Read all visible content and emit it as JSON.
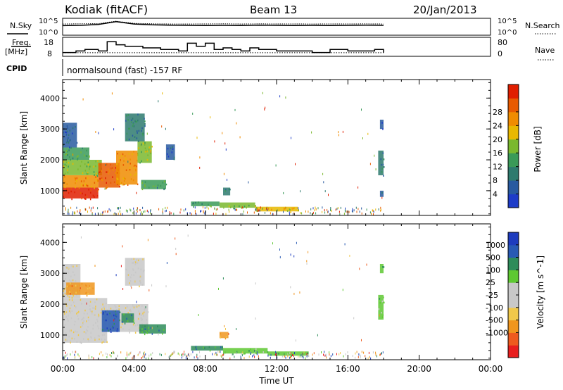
{
  "header": {
    "station": "Kodiak (fitACF)",
    "beam": "Beam 13",
    "date": "20/Jan/2013"
  },
  "side_labels": {
    "nsky": "N.Sky",
    "freq_line1": "Freq.",
    "freq_line2": "[MHz]",
    "cpid": "CPID",
    "nsearch": "N.Search",
    "nave": "Nave",
    "mode": "normalsound (fast) -157 RF"
  },
  "noise_axis": {
    "left_ticks": [
      "10^5",
      "10^0"
    ],
    "right_ticks": [
      "10^5",
      "10^0"
    ]
  },
  "freq_axis": {
    "left_ticks": [
      "18",
      "8"
    ],
    "right_ticks": [
      "80",
      "0"
    ]
  },
  "colors": {
    "power": [
      "#1e3cc8",
      "#285aa0",
      "#2e7a6e",
      "#3a9a58",
      "#7ab82e",
      "#e8b800",
      "#f08c00",
      "#e85a00",
      "#e01e00"
    ],
    "velocity": [
      "#e81e1e",
      "#ee5a1e",
      "#f0961e",
      "#f0c84a",
      "#c8c8c8",
      "#c8c8c8",
      "#5ec832",
      "#2e8c5a",
      "#285ab4",
      "#1e3cbe"
    ]
  },
  "chart_data": [
    {
      "type": "line",
      "title": "Noise",
      "x": [
        "00:00",
        "01:00",
        "02:00",
        "03:00",
        "04:00",
        "05:00",
        "06:00",
        "07:00",
        "08:00",
        "09:00",
        "10:00",
        "11:00",
        "12:00",
        "13:00",
        "14:00",
        "15:00",
        "16:00",
        "17:00",
        "18:00"
      ],
      "series": [
        {
          "name": "N.Sky",
          "values": [
            800,
            1000,
            2000,
            20000,
            3000,
            1500,
            1200,
            1000,
            900,
            1000,
            900,
            1100,
            1000,
            900,
            1000,
            900,
            1000,
            1100,
            1000
          ]
        },
        {
          "name": "N.Search",
          "values": [
            3000,
            3500,
            4000,
            30000,
            5000,
            3500,
            3000,
            3000,
            3200,
            3500,
            3000,
            3300,
            3200,
            3100,
            3000,
            3100,
            3200,
            3300,
            3000
          ]
        }
      ],
      "ylim": [
        "10^0",
        "10^5"
      ]
    },
    {
      "type": "line",
      "title": "",
      "x": [
        "00:00",
        "00:45",
        "01:15",
        "02:00",
        "02:30",
        "03:00",
        "03:30",
        "04:30",
        "05:30",
        "06:30",
        "07:00",
        "07:30",
        "08:00",
        "08:30",
        "09:00",
        "09:30",
        "10:00",
        "10:30",
        "11:00",
        "12:00",
        "13:00",
        "14:00",
        "15:00",
        "16:00",
        "17:00",
        "17:30",
        "18:00"
      ],
      "series": [
        {
          "name": "Freq. [MHz]",
          "values": [
            10,
            11,
            12,
            11,
            17,
            15,
            14,
            13,
            12,
            11,
            16,
            14,
            16,
            12,
            13,
            12,
            11,
            13,
            12,
            11,
            11,
            10,
            12,
            11,
            11,
            12,
            10
          ]
        },
        {
          "name": "Nave",
          "values": [
            15,
            15,
            15,
            15,
            15,
            15,
            15,
            15,
            15,
            15,
            15,
            15,
            15,
            15,
            15,
            15,
            15,
            15,
            15,
            15,
            15,
            15,
            15,
            15,
            15,
            15,
            15
          ]
        }
      ],
      "ylim_left": [
        8,
        18
      ],
      "ylim_right": [
        0,
        80
      ]
    },
    {
      "type": "heatmap",
      "title": "Power",
      "ylabel": "Slant Range [km]",
      "y_ticks": [
        "1000",
        "2000",
        "3000",
        "4000"
      ],
      "ylim": [
        200,
        4600
      ],
      "xlim": [
        "00:00",
        "24:00"
      ],
      "colorbar_label": "Power [dB]",
      "colorbar_ticks": [
        "4",
        "8",
        "12",
        "16",
        "20",
        "24",
        "28"
      ],
      "regions": [
        {
          "t0": 0.0,
          "t1": 2.0,
          "r0": 750,
          "r1": 1100,
          "level": 8
        },
        {
          "t0": 0.0,
          "t1": 2.0,
          "r0": 1100,
          "r1": 1500,
          "level": 6
        },
        {
          "t0": 0.0,
          "t1": 2.2,
          "r0": 1500,
          "r1": 2000,
          "level": 4
        },
        {
          "t0": 0.0,
          "t1": 1.5,
          "r0": 2000,
          "r1": 2400,
          "level": 3
        },
        {
          "t0": 0.0,
          "t1": 0.8,
          "r0": 2400,
          "r1": 3200,
          "level": 1
        },
        {
          "t0": 2.0,
          "t1": 3.2,
          "r0": 1100,
          "r1": 1900,
          "level": 7
        },
        {
          "t0": 3.0,
          "t1": 4.2,
          "r0": 1200,
          "r1": 2300,
          "level": 6
        },
        {
          "t0": 4.2,
          "t1": 5.0,
          "r0": 1900,
          "r1": 2600,
          "level": 4
        },
        {
          "t0": 3.5,
          "t1": 4.6,
          "r0": 2600,
          "r1": 3500,
          "level": 2
        },
        {
          "t0": 4.4,
          "t1": 5.8,
          "r0": 1050,
          "r1": 1350,
          "level": 3
        },
        {
          "t0": 5.8,
          "t1": 6.3,
          "r0": 2000,
          "r1": 2500,
          "level": 1
        },
        {
          "t0": 7.2,
          "t1": 8.8,
          "r0": 500,
          "r1": 650,
          "level": 3
        },
        {
          "t0": 8.8,
          "t1": 10.8,
          "r0": 450,
          "r1": 620,
          "level": 4
        },
        {
          "t0": 10.8,
          "t1": 13.2,
          "r0": 330,
          "r1": 480,
          "level": 5
        },
        {
          "t0": 9.0,
          "t1": 9.4,
          "r0": 850,
          "r1": 1100,
          "level": 2
        },
        {
          "t0": 17.7,
          "t1": 18.0,
          "r0": 1500,
          "r1": 2300,
          "level": 2
        },
        {
          "t0": 17.8,
          "t1": 18.0,
          "r0": 3000,
          "r1": 3300,
          "level": 1
        },
        {
          "t0": 17.8,
          "t1": 18.0,
          "r0": 800,
          "r1": 1000,
          "level": 1
        }
      ]
    },
    {
      "type": "heatmap",
      "title": "Velocity",
      "ylabel": "Slant Range [km]",
      "xlabel": "Time UT",
      "x_ticks": [
        "00:00",
        "04:00",
        "08:00",
        "12:00",
        "16:00",
        "20:00",
        "00:00"
      ],
      "y_ticks": [
        "1000",
        "2000",
        "3000",
        "4000"
      ],
      "ylim": [
        200,
        4600
      ],
      "xlim": [
        "00:00",
        "24:00"
      ],
      "colorbar_label": "Velocity [m s^-1]",
      "colorbar_ticks": [
        "1000",
        "500",
        "100",
        "25",
        "-25",
        "-100",
        "-500",
        "-1000"
      ],
      "regions": [
        {
          "t0": 0.0,
          "t1": 2.5,
          "r0": 750,
          "r1": 2200,
          "level": 4
        },
        {
          "t0": 2.5,
          "t1": 4.8,
          "r0": 1100,
          "r1": 2000,
          "level": 4
        },
        {
          "t0": 2.2,
          "t1": 3.2,
          "r0": 1100,
          "r1": 1800,
          "level": 8
        },
        {
          "t0": 3.3,
          "t1": 4.0,
          "r0": 1400,
          "r1": 1700,
          "level": 7
        },
        {
          "t0": 0.0,
          "t1": 1.0,
          "r0": 2200,
          "r1": 3300,
          "level": 4
        },
        {
          "t0": 3.5,
          "t1": 4.6,
          "r0": 2600,
          "r1": 3500,
          "level": 4
        },
        {
          "t0": 4.3,
          "t1": 5.8,
          "r0": 1050,
          "r1": 1350,
          "level": 7
        },
        {
          "t0": 7.2,
          "t1": 9.0,
          "r0": 500,
          "r1": 650,
          "level": 7
        },
        {
          "t0": 9.0,
          "t1": 11.5,
          "r0": 400,
          "r1": 580,
          "level": 6
        },
        {
          "t0": 11.5,
          "t1": 13.8,
          "r0": 330,
          "r1": 470,
          "level": 6
        },
        {
          "t0": 8.8,
          "t1": 9.3,
          "r0": 900,
          "r1": 1100,
          "level": 2
        },
        {
          "t0": 17.7,
          "t1": 18.0,
          "r0": 1500,
          "r1": 2300,
          "level": 6
        },
        {
          "t0": 17.8,
          "t1": 18.0,
          "r0": 3000,
          "r1": 3300,
          "level": 6
        },
        {
          "t0": 0.2,
          "t1": 1.8,
          "r0": 2300,
          "r1": 2700,
          "level": 2
        }
      ]
    }
  ]
}
